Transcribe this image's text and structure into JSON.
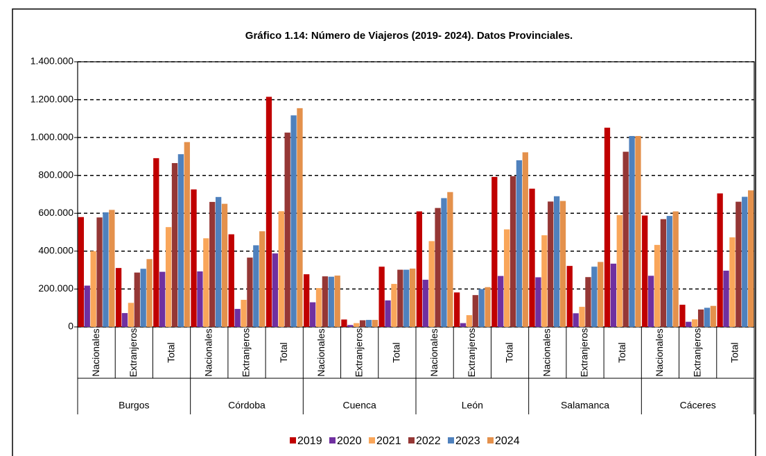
{
  "chart_data": {
    "type": "bar",
    "title": "Gráfico 1.14: Número de Viajeros (2019- 2024). Datos Provinciales.",
    "groups": [
      {
        "name": "Burgos",
        "categories": [
          "Nacionales",
          "Extranjeros",
          "Total"
        ]
      },
      {
        "name": "Córdoba",
        "categories": [
          "Nacionales",
          "Extranjeros",
          "Total"
        ]
      },
      {
        "name": "Cuenca",
        "categories": [
          "Nacionales",
          "Extranjeros",
          "Total"
        ]
      },
      {
        "name": "León",
        "categories": [
          "Nacionales",
          "Extranjeros",
          "Total"
        ]
      },
      {
        "name": "Salamanca",
        "categories": [
          "Nacionales",
          "Extranjeros",
          "Total"
        ]
      },
      {
        "name": "Cáceres",
        "categories": [
          "Nacionales",
          "Extranjeros",
          "Total"
        ]
      }
    ],
    "series": [
      {
        "name": "2019",
        "color": "#c00000",
        "values": [
          580000,
          311000,
          891000,
          726000,
          489000,
          1215000,
          278000,
          39000,
          318000,
          610000,
          182000,
          792000,
          730000,
          322000,
          1052000,
          588000,
          117000,
          705000
        ]
      },
      {
        "name": "2020",
        "color": "#7030a0",
        "values": [
          218000,
          73000,
          291000,
          293000,
          95000,
          388000,
          130000,
          10000,
          140000,
          249000,
          20000,
          269000,
          262000,
          72000,
          334000,
          270000,
          27000,
          297000
        ]
      },
      {
        "name": "2021",
        "color": "#f9a65a",
        "values": [
          400000,
          127000,
          527000,
          468000,
          143000,
          611000,
          205000,
          20000,
          227000,
          453000,
          62000,
          515000,
          484000,
          106000,
          590000,
          433000,
          40000,
          473000
        ]
      },
      {
        "name": "2022",
        "color": "#953735",
        "values": [
          578000,
          287000,
          865000,
          660000,
          366000,
          1026000,
          267000,
          35000,
          302000,
          628000,
          168000,
          796000,
          662000,
          263000,
          925000,
          569000,
          92000,
          661000
        ]
      },
      {
        "name": "2023",
        "color": "#4f81bd",
        "values": [
          605000,
          307000,
          912000,
          686000,
          431000,
          1117000,
          265000,
          37000,
          302000,
          680000,
          200000,
          880000,
          690000,
          318000,
          1008000,
          586000,
          101000,
          687000
        ]
      },
      {
        "name": "2024",
        "color": "#e4914c",
        "values": [
          618000,
          358000,
          976000,
          650000,
          505000,
          1155000,
          271000,
          37000,
          308000,
          712000,
          210000,
          922000,
          665000,
          343000,
          1008000,
          610000,
          111000,
          721000
        ]
      }
    ],
    "ylim": [
      0,
      1400000
    ],
    "yticks": [
      0,
      {
        "value": 200000,
        "label": "200.000"
      },
      {
        "value": 400000,
        "label": "400.000"
      },
      {
        "value": 600000,
        "label": "600.000"
      },
      {
        "value": 800000,
        "label": "800.000"
      },
      {
        "value": 1000000,
        "label": "1.000.000"
      },
      {
        "value": 1200000,
        "label": "1.200.000"
      },
      {
        "value": 1400000,
        "label": "1.400.000"
      }
    ],
    "grid": true
  }
}
